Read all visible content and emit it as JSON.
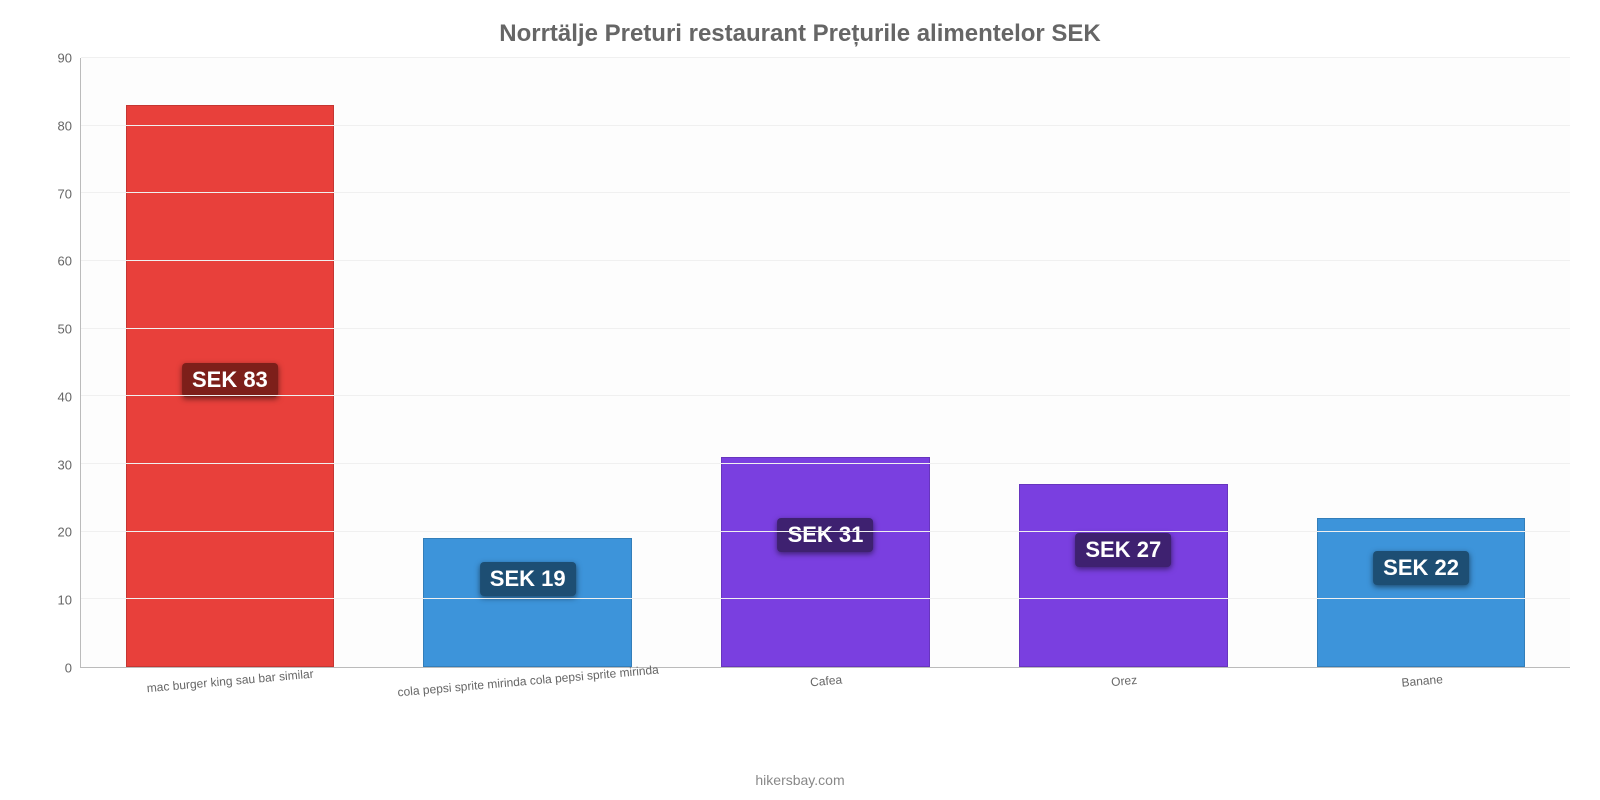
{
  "chart": {
    "type": "bar",
    "title": "Norrtälje Preturi restaurant Prețurile alimentelor SEK",
    "title_fontsize": 24,
    "title_color": "#666666",
    "background_color": "#fdfdfd",
    "grid_color": "#f0f0f0",
    "axis_color": "#bbbbbb",
    "tick_font_color": "#666666",
    "tick_fontsize": 13,
    "xlabel_fontsize": 12,
    "xlabel_rotation_deg": -5,
    "value_label_fontsize": 22,
    "value_label_text_color": "#ffffff",
    "bar_width_pct": 70,
    "ylim": [
      0,
      90
    ],
    "ytick_step": 10,
    "yticks": [
      0,
      10,
      20,
      30,
      40,
      50,
      60,
      70,
      80,
      90
    ],
    "categories": [
      "mac burger king sau bar similar",
      "cola pepsi sprite mirinda cola pepsi sprite mirinda",
      "Cafea",
      "Orez",
      "Banane"
    ],
    "values": [
      83,
      19,
      31,
      27,
      22
    ],
    "value_labels": [
      "SEK 83",
      "SEK 19",
      "SEK 31",
      "SEK 27",
      "SEK 22"
    ],
    "bar_colors": [
      "#e8403b",
      "#3d94da",
      "#7a3fe0",
      "#7a3fe0",
      "#3d94da"
    ],
    "label_badge_colors": [
      "#7d1f1a",
      "#1d4e73",
      "#3e2170",
      "#3e2170",
      "#1d4e73"
    ],
    "credit": "hikersbay.com",
    "credit_color": "#888888"
  }
}
